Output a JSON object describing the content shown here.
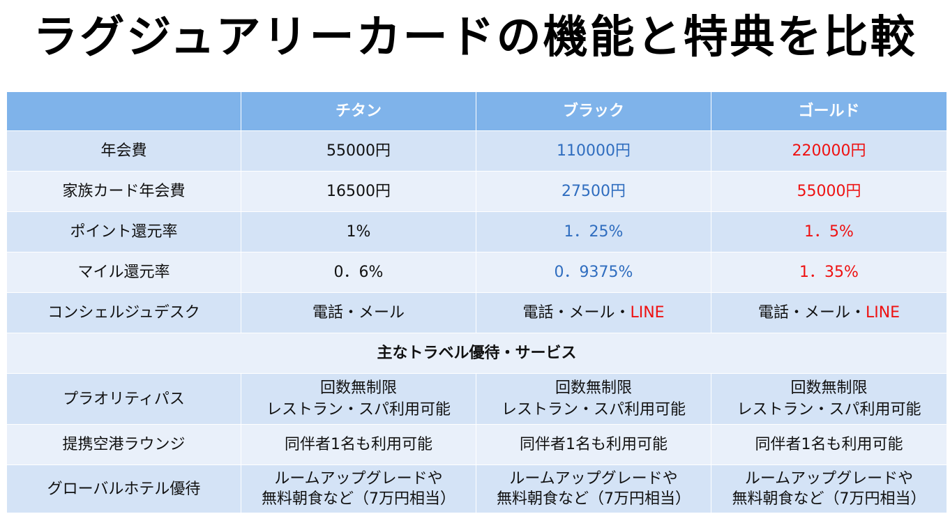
{
  "title": "ラグジュアリーカードの機能と特典を比較",
  "colors": {
    "header_bg": "#7fb3ea",
    "row_dark": "#d4e3f6",
    "row_light": "#e9f0fa",
    "black_card_text": "#2f6dbf",
    "gold_card_text": "#ee1111"
  },
  "table": {
    "columns": [
      "",
      "チタン",
      "ブラック",
      "ゴールド"
    ],
    "rows": [
      {
        "label": "年会費",
        "values": [
          "55000円",
          "110000円",
          "220000円"
        ]
      },
      {
        "label": "家族カード年会費",
        "values": [
          "16500円",
          "27500円",
          "55000円"
        ]
      },
      {
        "label": "ポイント還元率",
        "values": [
          "1%",
          "1．25%",
          "1．5%"
        ]
      },
      {
        "label": "マイル還元率",
        "values": [
          "0．6%",
          "0．9375%",
          "1．35%"
        ]
      },
      {
        "label": "コンシェルジュデスク",
        "values": [
          {
            "main": "電話・メール",
            "extra": ""
          },
          {
            "main": "電話・メール・",
            "extra": "LINE"
          },
          {
            "main": "電話・メール・",
            "extra": "LINE"
          }
        ]
      }
    ],
    "section_title": "主なトラベル優待・サービス",
    "service_rows": [
      {
        "label": "プラオリティパス",
        "values": [
          [
            "回数無制限",
            "レストラン・スパ利用可能"
          ],
          [
            "回数無制限",
            "レストラン・スパ利用可能"
          ],
          [
            "回数無制限",
            "レストラン・スパ利用可能"
          ]
        ]
      },
      {
        "label": "提携空港ラウンジ",
        "values": [
          [
            "同伴者1名も利用可能"
          ],
          [
            "同伴者1名も利用可能"
          ],
          [
            "同伴者1名も利用可能"
          ]
        ]
      },
      {
        "label": "グローバルホテル優待",
        "values": [
          [
            "ルームアップグレードや",
            "無料朝食など（7万円相当）"
          ],
          [
            "ルームアップグレードや",
            "無料朝食など（7万円相当）"
          ],
          [
            "ルームアップグレードや",
            "無料朝食など（7万円相当）"
          ]
        ]
      }
    ]
  }
}
